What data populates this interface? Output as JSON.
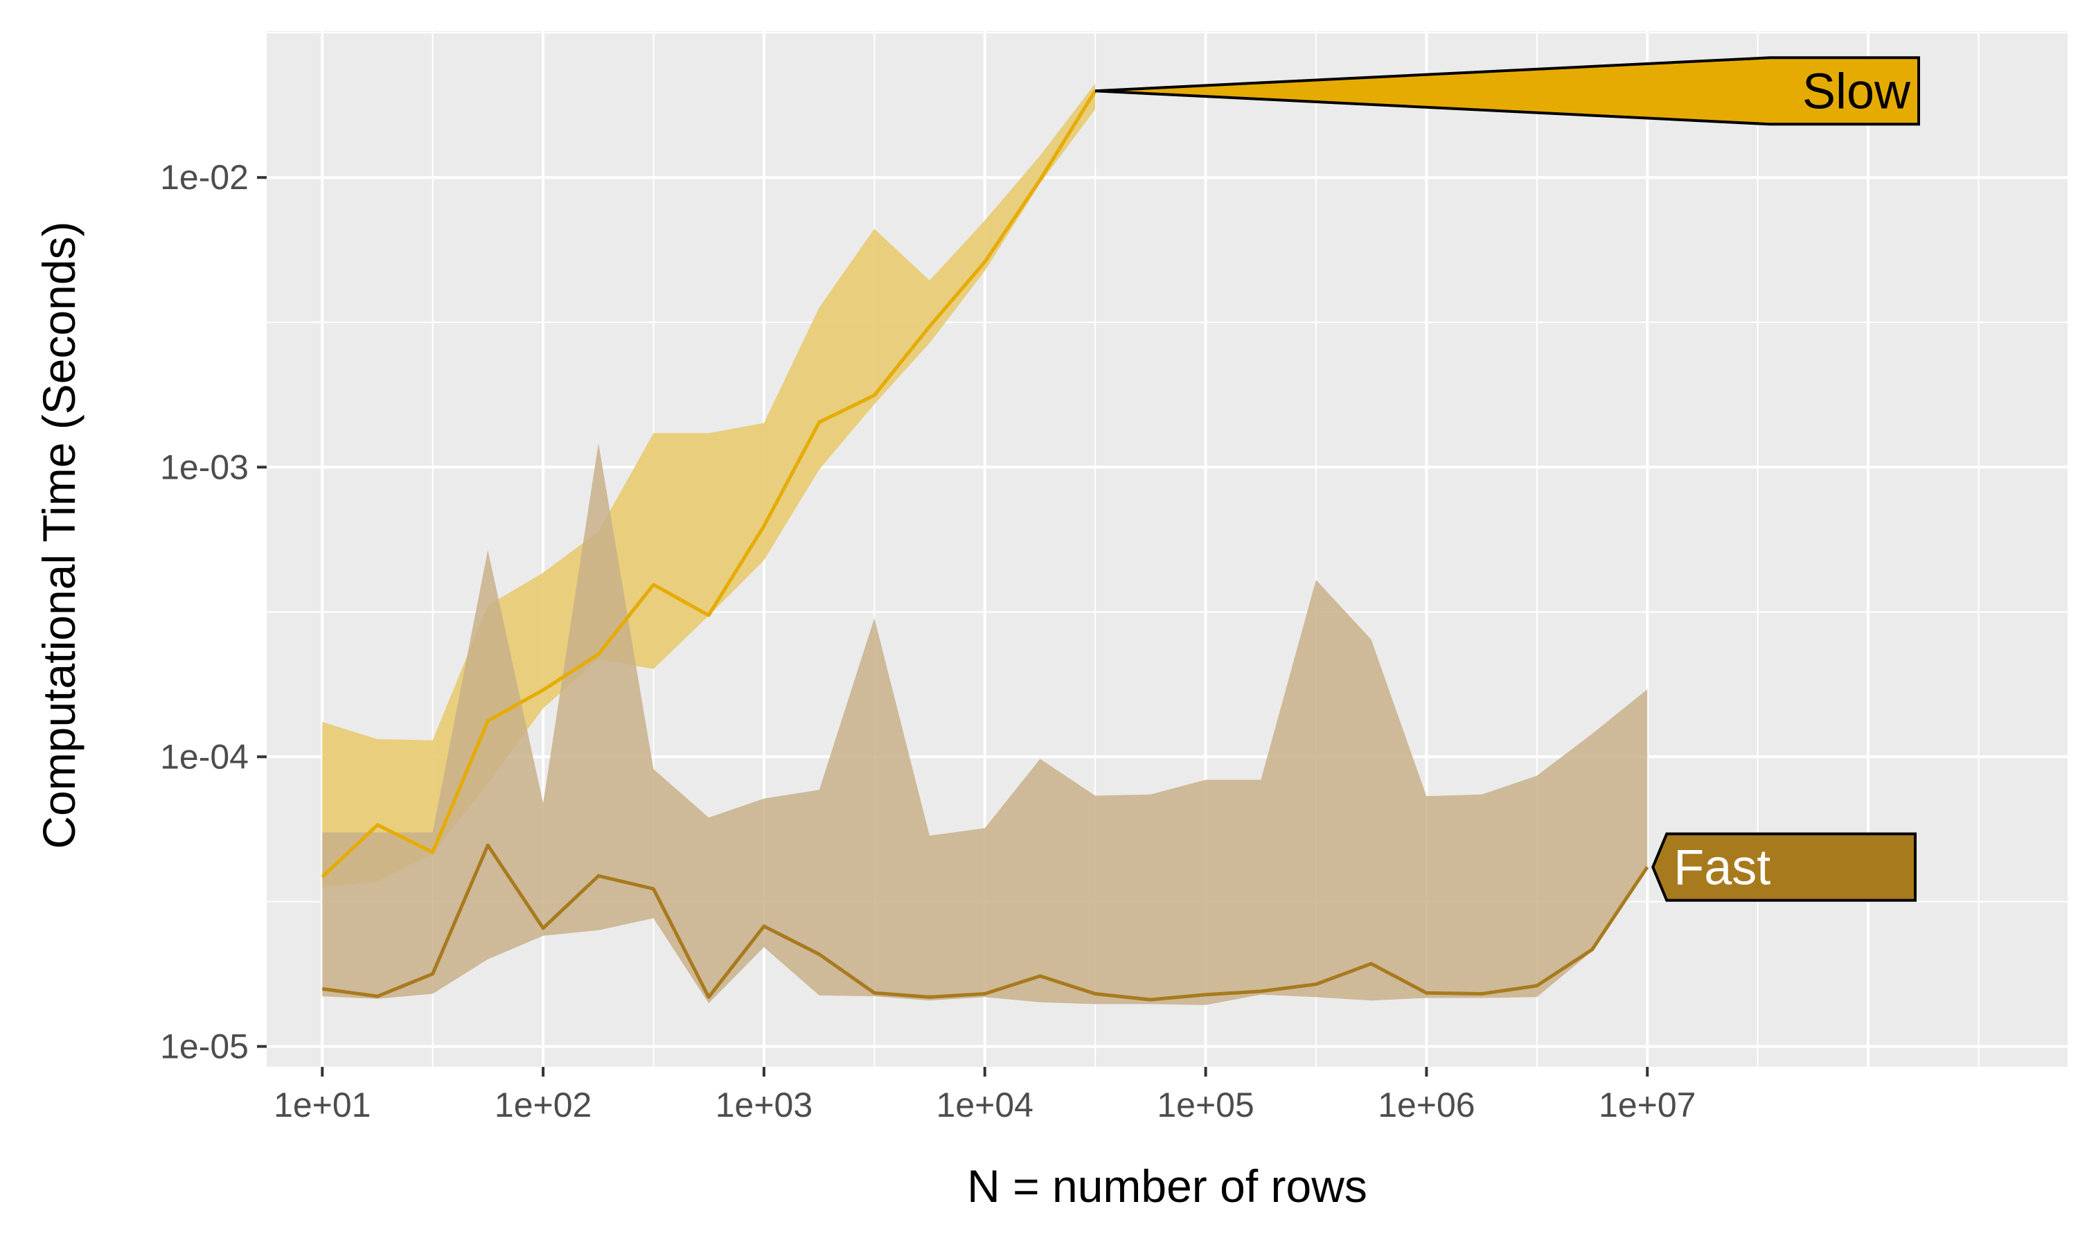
{
  "chart_data": {
    "type": "line",
    "xlabel": "N = number of rows",
    "ylabel": "Computational Time (Seconds)",
    "x_scale": "log10",
    "y_scale": "log10",
    "xlim": [
      5.6,
      800000000
    ],
    "ylim": [
      8.5e-06,
      0.032
    ],
    "x_ticks": [
      10,
      100,
      1000,
      10000,
      100000,
      1000000,
      10000000
    ],
    "x_tick_labels": [
      "1e+01",
      "1e+02",
      "1e+03",
      "1e+04",
      "1e+05",
      "1e+06",
      "1e+07"
    ],
    "y_ticks": [
      1e-05,
      0.0001,
      0.001,
      0.01
    ],
    "y_tick_labels": [
      "1e-05",
      "1e-04",
      "1e-03",
      "1e-02"
    ],
    "grid": true,
    "background": "#ebebeb",
    "series": [
      {
        "name": "Fast",
        "color": "#a87a1e",
        "fill": "#c9b08a",
        "x": [
          10,
          17.8,
          31.6,
          56.2,
          100,
          178,
          316,
          562,
          1000,
          1780,
          3160,
          5620,
          10000,
          17800,
          31600,
          56200,
          100000,
          178000,
          316000,
          562000,
          1000000,
          1780000,
          3160000,
          5620000,
          10000000
        ],
        "median": [
          1.58e-05,
          1.49e-05,
          1.78e-05,
          4.95e-05,
          2.56e-05,
          3.88e-05,
          3.5e-05,
          1.48e-05,
          2.6e-05,
          2.08e-05,
          1.53e-05,
          1.48e-05,
          1.52e-05,
          1.75e-05,
          1.52e-05,
          1.45e-05,
          1.51e-05,
          1.55e-05,
          1.64e-05,
          1.93e-05,
          1.53e-05,
          1.52e-05,
          1.62e-05,
          2.16e-05,
          4.16e-05
        ],
        "lower": [
          1.49e-05,
          1.46e-05,
          1.52e-05,
          2e-05,
          2.41e-05,
          2.52e-05,
          2.77e-05,
          1.41e-05,
          2.2e-05,
          1.5e-05,
          1.49e-05,
          1.44e-05,
          1.48e-05,
          1.42e-05,
          1.4e-05,
          1.4e-05,
          1.39e-05,
          1.51e-05,
          1.48e-05,
          1.44e-05,
          1.47e-05,
          1.47e-05,
          1.48e-05,
          2.13e-05,
          4.16e-05
        ],
        "upper": [
          5.48e-05,
          5.48e-05,
          5.48e-05,
          0.000517,
          6.92e-05,
          0.00121,
          9.07e-05,
          6.17e-05,
          7.17e-05,
          7.69e-05,
          0.000301,
          5.34e-05,
          5.67e-05,
          9.83e-05,
          7.34e-05,
          7.41e-05,
          8.33e-05,
          8.33e-05,
          0.000408,
          0.000254,
          7.31e-05,
          7.41e-05,
          8.6e-05,
          0.00012,
          0.000171
        ]
      },
      {
        "name": "Slow",
        "color": "#e6ab02",
        "fill": "#e8cc77",
        "x": [
          10,
          17.8,
          31.6,
          56.2,
          100,
          178,
          316,
          562,
          1000,
          1780,
          3160,
          5620,
          10000,
          17800,
          31600
        ],
        "median": [
          3.85e-05,
          5.82e-05,
          4.68e-05,
          0.000133,
          0.00017,
          0.000226,
          0.000393,
          0.000308,
          0.000626,
          0.00143,
          0.00177,
          0.00306,
          0.00511,
          0.00982,
          0.0199
        ],
        "lower": [
          3.54e-05,
          3.71e-05,
          4.63e-05,
          8.1e-05,
          0.000147,
          0.000217,
          0.000201,
          0.000307,
          0.000477,
          0.000982,
          0.00165,
          0.00268,
          0.00476,
          0.00954,
          0.0172
        ],
        "upper": [
          0.000132,
          0.000115,
          0.000114,
          0.000333,
          0.000432,
          0.0006,
          0.00131,
          0.00131,
          0.00142,
          0.00356,
          0.00665,
          0.00441,
          0.00711,
          0.0119,
          0.0211
        ]
      }
    ],
    "annotations": [
      {
        "text": "Slow",
        "series": "Slow",
        "fill": "#e6ab02",
        "text_color": "#000000"
      },
      {
        "text": "Fast",
        "series": "Fast",
        "fill": "#a87a1e",
        "text_color": "#ffffff"
      }
    ]
  }
}
